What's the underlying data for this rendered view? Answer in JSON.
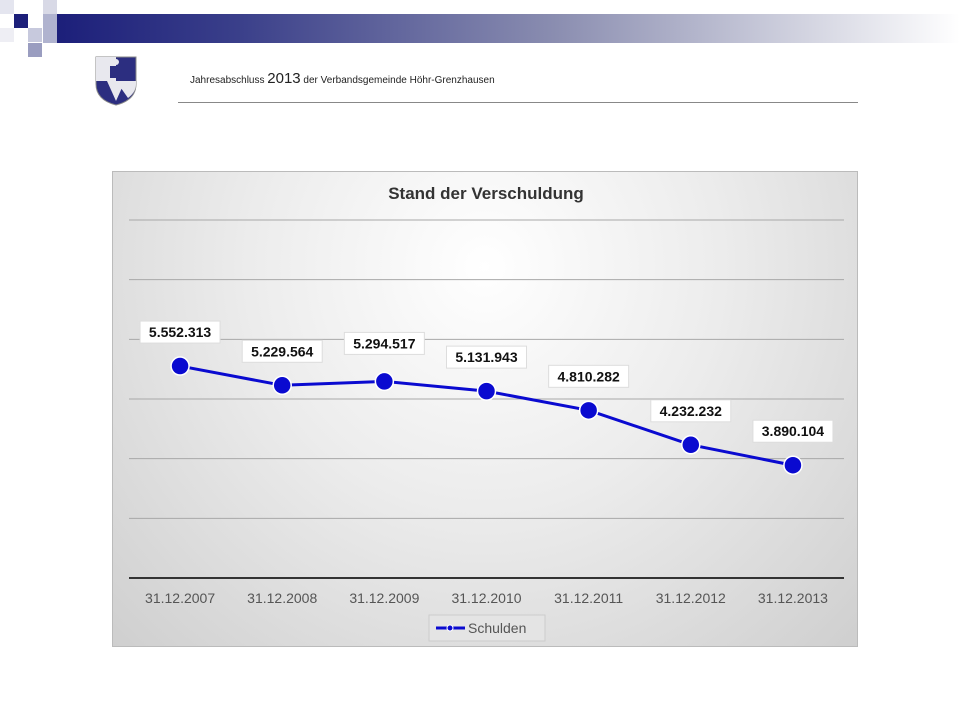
{
  "header": {
    "title_prefix": "Jahresabschluss",
    "title_year": "2013",
    "title_suffix": "der Verbandsgemeinde Höhr-Grenzhausen"
  },
  "colors": {
    "series": "#0a0ad0",
    "band_dark": "#1c1f7a"
  },
  "chart_data": {
    "type": "line",
    "title": "Stand der Verschuldung",
    "categories": [
      "31.12.2007",
      "31.12.2008",
      "31.12.2009",
      "31.12.2010",
      "31.12.2011",
      "31.12.2012",
      "31.12.2013"
    ],
    "series": [
      {
        "name": "Schulden",
        "values": [
          5552313,
          5229564,
          5294517,
          5131943,
          4810282,
          4232232,
          3890104
        ]
      }
    ],
    "labels": [
      "5.552.313",
      "5.229.564",
      "5.294.517",
      "5.131.943",
      "4.810.282",
      "4.232.232",
      "3.890.104"
    ],
    "ylim": [
      2000000,
      8000000
    ],
    "ystep": 1000000,
    "grid": true,
    "legend": "bottom",
    "xlabel": "",
    "ylabel": ""
  }
}
